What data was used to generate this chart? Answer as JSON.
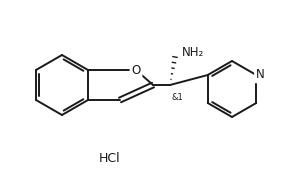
{
  "background_color": "#ffffff",
  "line_color": "#1a1a1a",
  "line_width": 1.4,
  "text_color": "#1a1a1a",
  "hcl_text": "HCl",
  "o_text": "O",
  "n_text": "N",
  "stereo_text": "&1",
  "nh2_text": "NH₂",
  "figsize": [
    2.89,
    1.73
  ],
  "dpi": 100,
  "xlim": [
    0,
    289
  ],
  "ylim": [
    0,
    173
  ]
}
